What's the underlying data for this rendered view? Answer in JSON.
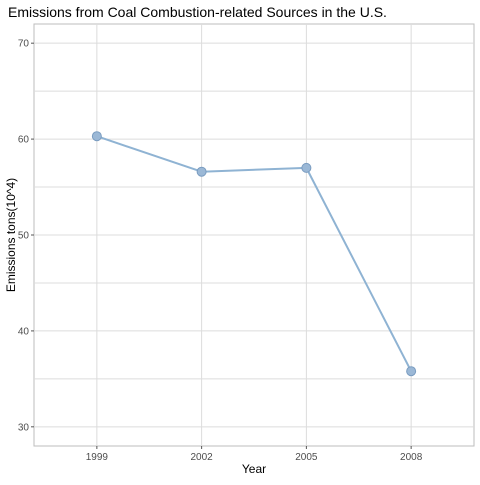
{
  "chart_data": {
    "type": "line",
    "title": "Emissions from Coal Combustion-related Sources in the U.S.",
    "xlabel": "Year",
    "ylabel": "Emissions tons(10^4)",
    "x": [
      "1999",
      "2002",
      "2005",
      "2008"
    ],
    "series": [
      {
        "values": [
          60.3,
          56.6,
          57.0,
          35.8
        ]
      }
    ],
    "ylim": [
      28,
      72
    ],
    "yticks": [
      30,
      40,
      50,
      60,
      70
    ],
    "grid": true,
    "legend": "none",
    "colors": {
      "line": "#8fb3d3",
      "point_fill": "#9bb8d6",
      "point_stroke": "#7a9cc0",
      "grid": "#dcdcdc",
      "panel_border": "#bdbdbd"
    }
  }
}
